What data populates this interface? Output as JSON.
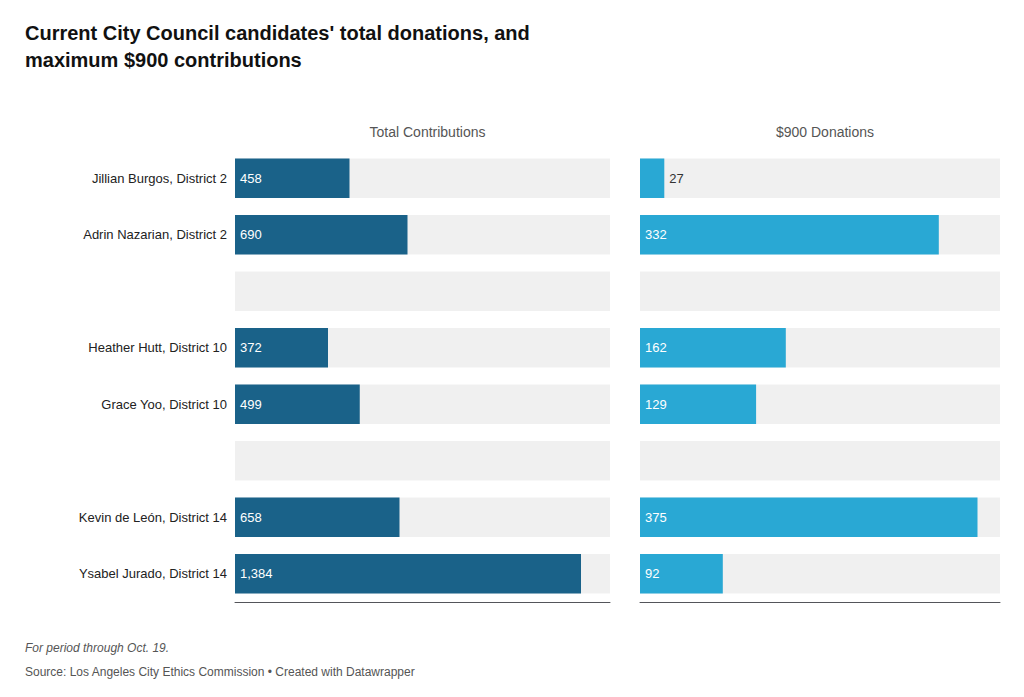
{
  "title": "Current City Council candidates' total donations, and\nmaximum $900 contributions",
  "annotations": [
    "For period through Oct. 19.",
    "Source: Los Angeles City Ethics Commission • Created with Datawrapper"
  ],
  "chart_data": [
    {
      "type": "bar",
      "orientation": "horizontal",
      "title": "Total Contributions",
      "categories": [
        "Jillian Burgos, District 2",
        "Adrin Nazarian, District 2",
        null,
        "Heather Hutt, District 10",
        "Grace Yoo, District 10",
        null,
        "Kevin de León, District 14",
        "Ysabel Jurado, District 14"
      ],
      "values": [
        458,
        690,
        null,
        372,
        499,
        null,
        658,
        1384
      ],
      "value_labels": [
        "458",
        "690",
        null,
        "372",
        "499",
        null,
        "658",
        "1,384"
      ],
      "color": "#1a6289",
      "xlim": [
        0,
        1500
      ],
      "data_labels": true,
      "tick_labels": "y",
      "grid": false
    },
    {
      "type": "bar",
      "orientation": "horizontal",
      "title": "$900 Donations",
      "categories": [
        "Jillian Burgos, District 2",
        "Adrin Nazarian, District 2",
        null,
        "Heather Hutt, District 10",
        "Grace Yoo, District 10",
        null,
        "Kevin de León, District 14",
        "Ysabel Jurado, District 14"
      ],
      "values": [
        27,
        332,
        null,
        162,
        129,
        null,
        375,
        92
      ],
      "color": "#29a8d4",
      "xlim": [
        0,
        400
      ],
      "data_labels": true,
      "tick_labels": false,
      "grid": false
    }
  ]
}
